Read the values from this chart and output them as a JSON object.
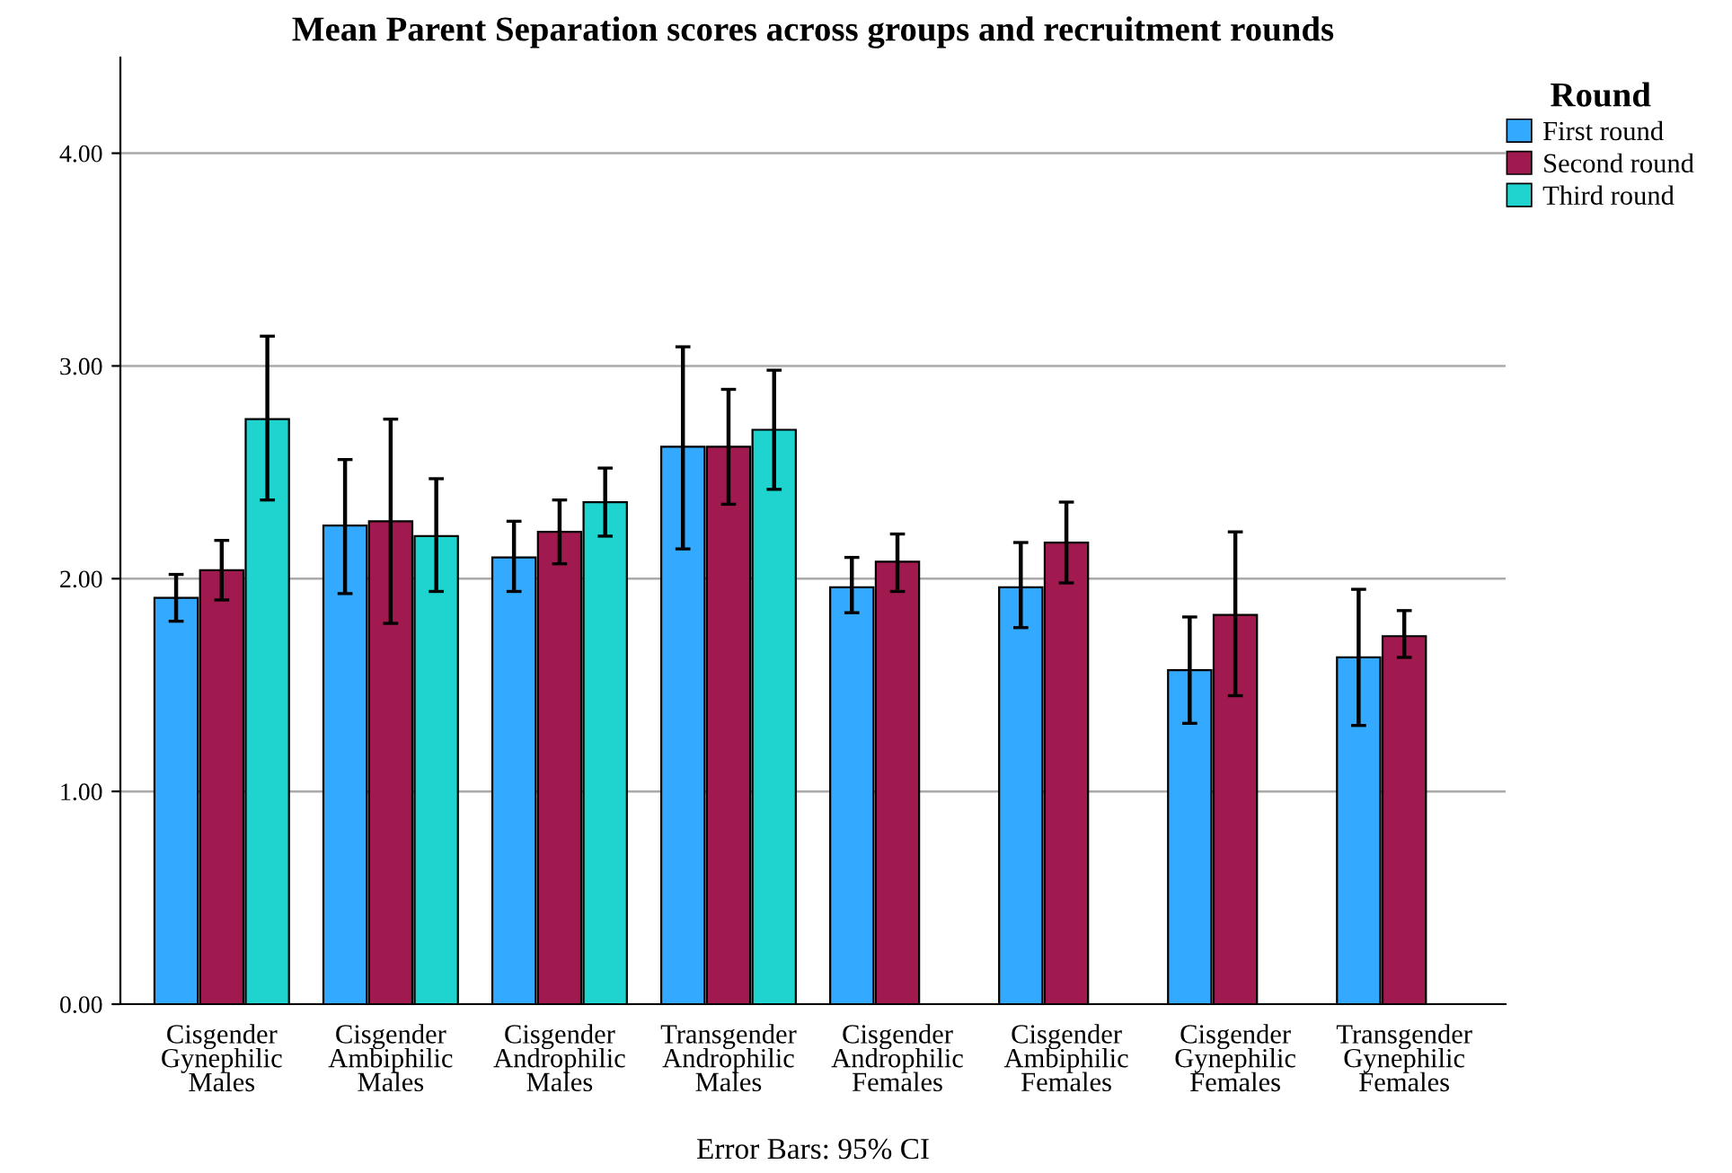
{
  "chart_data": {
    "type": "bar",
    "title": "Mean Parent Separation scores across groups and recruitment rounds",
    "categories": [
      "Cisgender\nGynephilic\nMales",
      "Cisgender\nAmbiphilic\nMales",
      "Cisgender\nAndrophilic\nMales",
      "Transgender\nAndrophilic\nMales",
      "Cisgender\nAndrophilic\nFemales",
      "Cisgender\nAmbiphilic\nFemales",
      "Cisgender\nGynephilic\nFemales",
      "Transgender\nGynephilic\nFemales"
    ],
    "series": [
      {
        "name": "First round",
        "color": "#33aaff",
        "values": [
          1.91,
          2.25,
          2.1,
          2.62,
          1.96,
          1.96,
          1.57,
          1.63
        ],
        "errors": [
          [
            1.8,
            2.02
          ],
          [
            1.93,
            2.56
          ],
          [
            1.94,
            2.27
          ],
          [
            2.14,
            3.09
          ],
          [
            1.84,
            2.1
          ],
          [
            1.77,
            2.17
          ],
          [
            1.32,
            1.82
          ],
          [
            1.31,
            1.95
          ]
        ]
      },
      {
        "name": "Second round",
        "color": "#a01a4f",
        "values": [
          2.04,
          2.27,
          2.22,
          2.62,
          2.08,
          2.17,
          1.83,
          1.73
        ],
        "errors": [
          [
            1.9,
            2.18
          ],
          [
            1.79,
            2.75
          ],
          [
            2.07,
            2.37
          ],
          [
            2.35,
            2.89
          ],
          [
            1.94,
            2.21
          ],
          [
            1.98,
            2.36
          ],
          [
            1.45,
            2.22
          ],
          [
            1.63,
            1.85
          ]
        ]
      },
      {
        "name": "Third round",
        "color": "#1fd3cf",
        "values": [
          2.75,
          2.2,
          2.36,
          2.7,
          null,
          null,
          null,
          null
        ],
        "errors": [
          [
            2.37,
            3.14
          ],
          [
            1.94,
            2.47
          ],
          [
            2.2,
            2.52
          ],
          [
            2.42,
            2.98
          ],
          null,
          null,
          null,
          null
        ]
      }
    ],
    "ylim": [
      0,
      4.45
    ],
    "yticks": [
      {
        "value": 0,
        "label": "0.00"
      },
      {
        "value": 1,
        "label": "1.00"
      },
      {
        "value": 2,
        "label": "2.00"
      },
      {
        "value": 3,
        "label": "3.00"
      },
      {
        "value": 4,
        "label": "4.00"
      }
    ],
    "grid": "y",
    "legend": "top right",
    "legend_title": "Round",
    "annotations": [
      "Error Bars: 95% CI"
    ]
  }
}
